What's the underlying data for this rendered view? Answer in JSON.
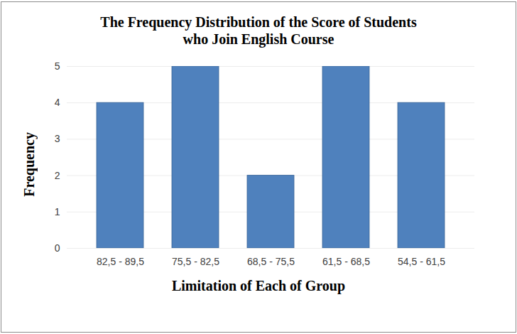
{
  "chart_data": {
    "type": "bar",
    "title": "The Frequency Distribution of the Score of Students\nwho Join English Course",
    "x_label": "Limitation of Each of Group",
    "y_label": "Frequency",
    "categories": [
      "82,5 - 89,5",
      "75,5 - 82,5",
      "68,5 - 75,5",
      "61,5 - 68,5",
      "54,5 - 61,5"
    ],
    "values": [
      4,
      5,
      2,
      5,
      4
    ],
    "color": "#4f81bd",
    "ylim": [
      0,
      5
    ],
    "yticks": [
      0,
      1,
      2,
      3,
      4,
      5
    ],
    "grid": true
  }
}
